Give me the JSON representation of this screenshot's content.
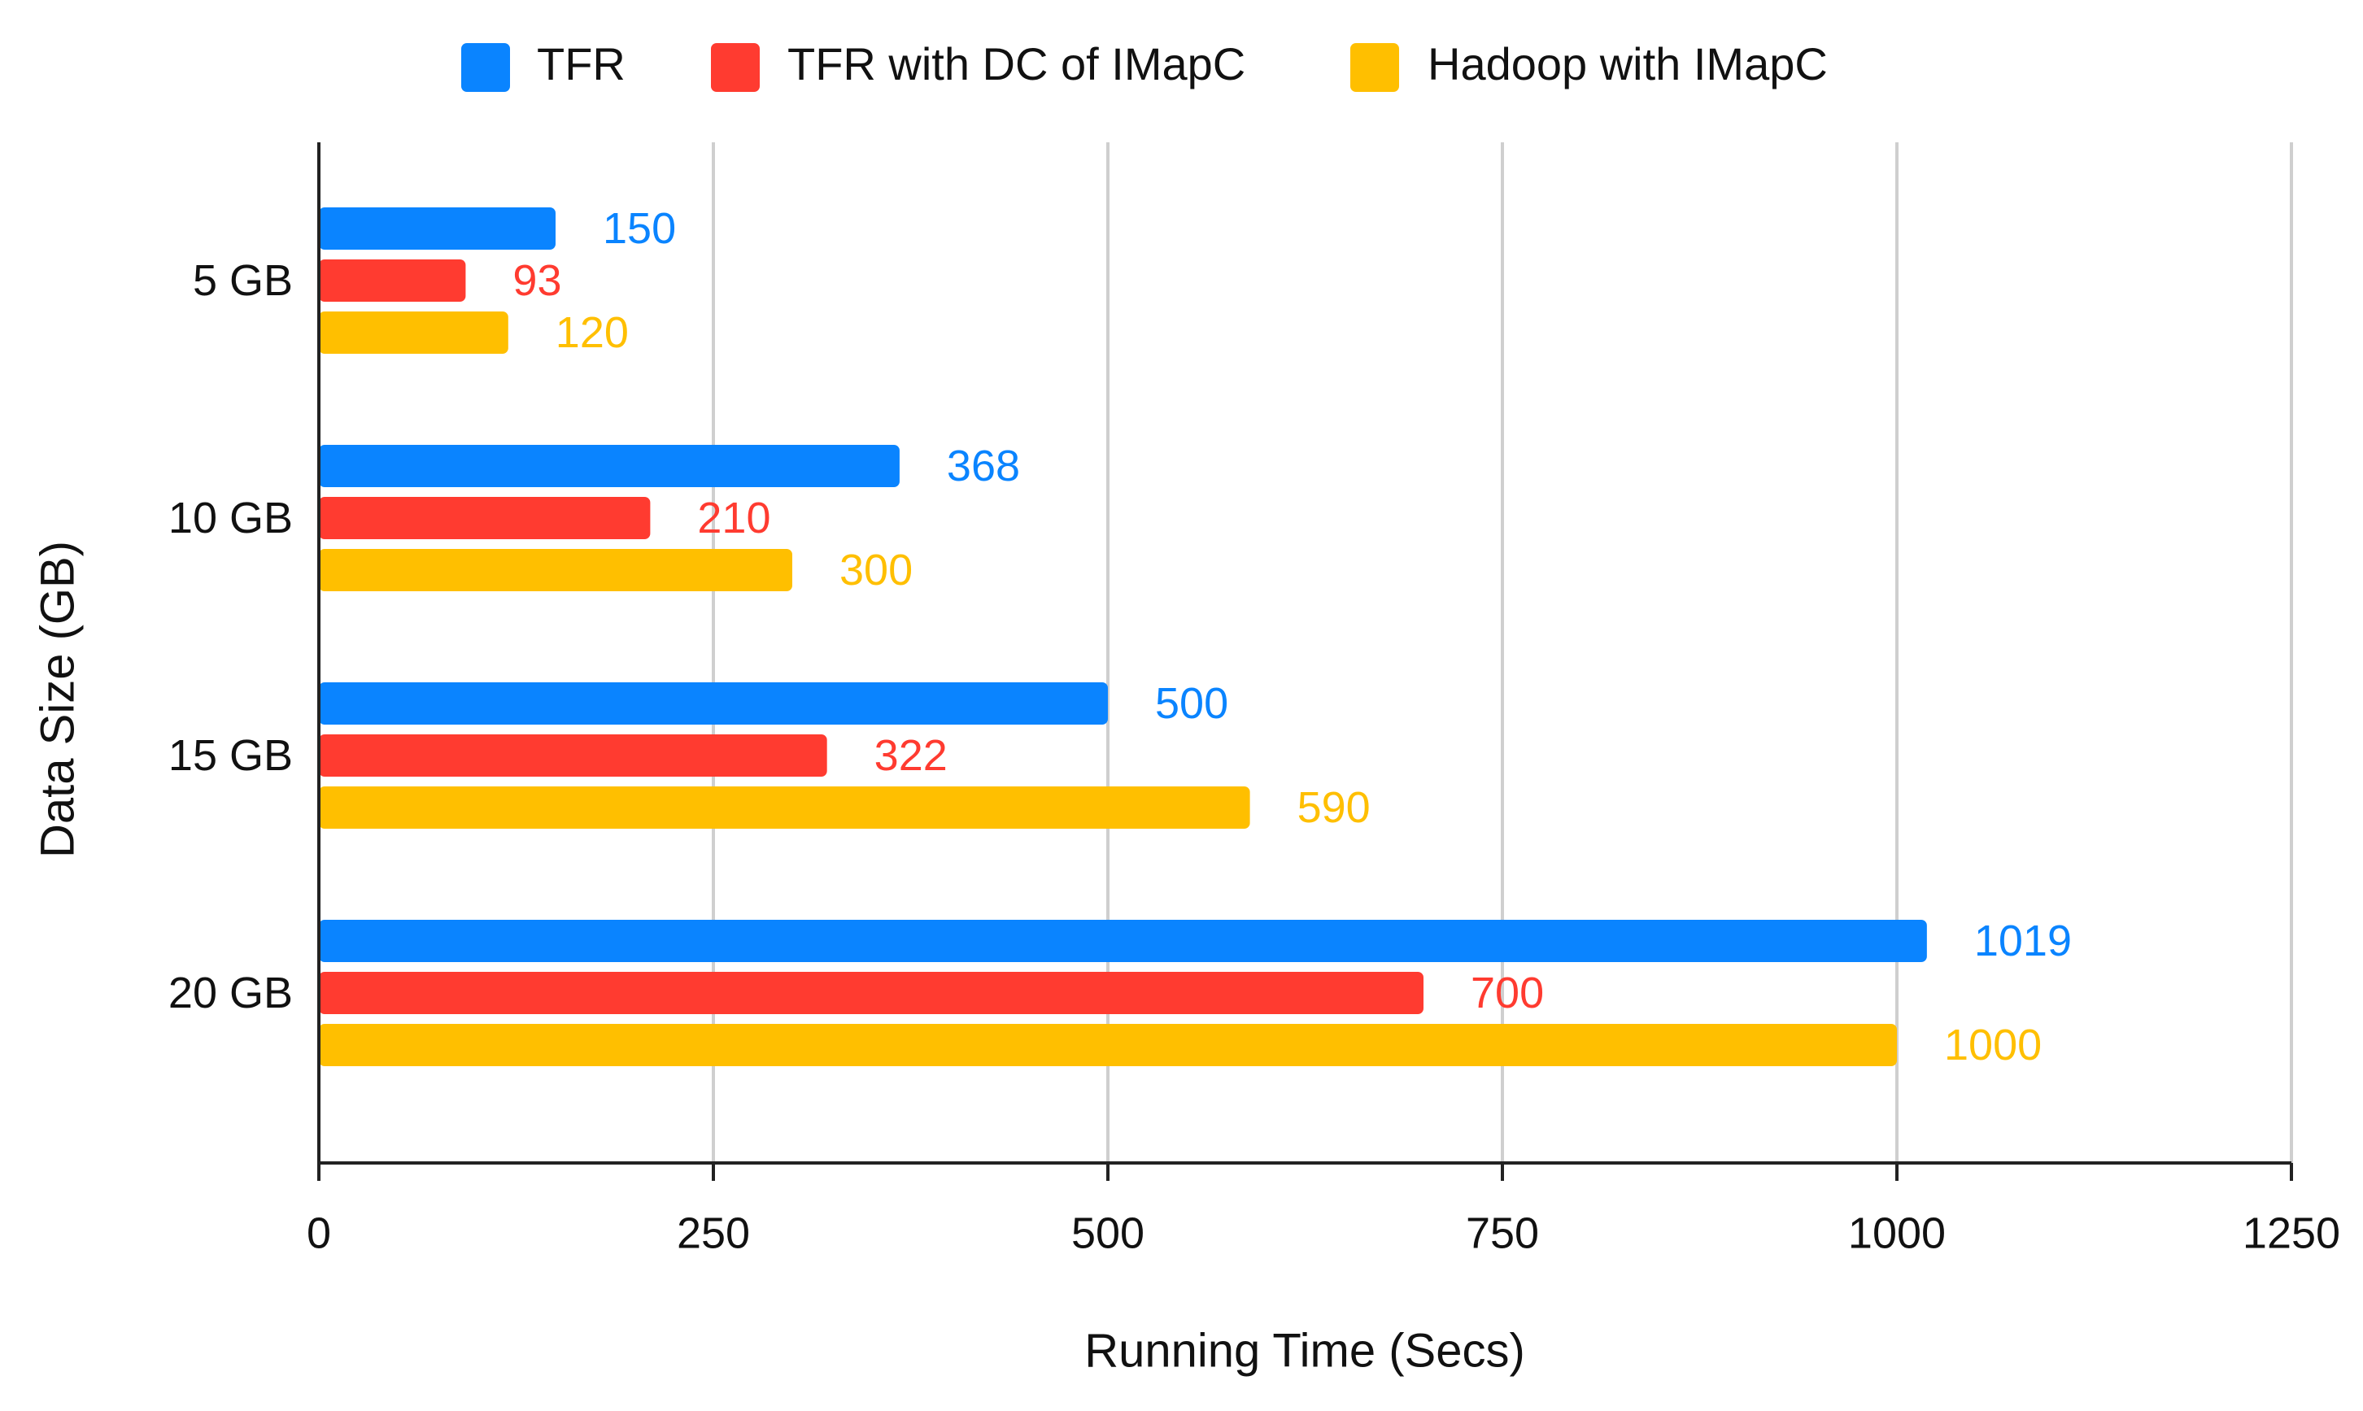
{
  "chart_data": {
    "type": "bar",
    "orientation": "horizontal",
    "title": "",
    "xlabel": "Running Time (Secs)",
    "ylabel": "Data Size (GB)",
    "categories": [
      "5 GB",
      "10 GB",
      "15 GB",
      "20 GB"
    ],
    "series": [
      {
        "name": "TFR",
        "color": "#0A84FF",
        "values": [
          150,
          368,
          500,
          1019
        ]
      },
      {
        "name": "TFR with DC of IMapC",
        "color": "#FF3B30",
        "values": [
          93,
          210,
          322,
          700
        ]
      },
      {
        "name": "Hadoop with IMapC",
        "color": "#FFBF00",
        "values": [
          120,
          300,
          590,
          1000
        ]
      }
    ],
    "xlim": [
      0,
      1250
    ],
    "xticks": [
      0,
      250,
      500,
      750,
      1000,
      1250
    ],
    "grid": true,
    "legend_position": "top-center",
    "data_labels": true
  }
}
